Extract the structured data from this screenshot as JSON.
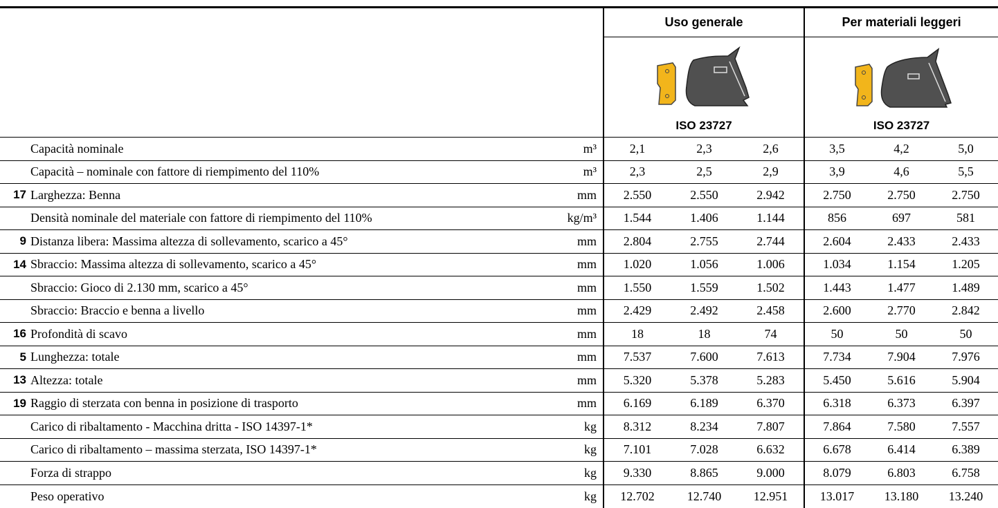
{
  "table": {
    "groups": [
      {
        "title": "Uso generale",
        "standard": "ISO 23727"
      },
      {
        "title": "Per materiali leggeri",
        "standard": "ISO 23727"
      }
    ],
    "rows": [
      {
        "label": "Capacità nominale",
        "unit": "m³",
        "values": [
          "2,1",
          "2,3",
          "2,6",
          "3,5",
          "4,2",
          "5,0"
        ]
      },
      {
        "label": "Capacità – nominale con fattore di riempimento del 110%",
        "unit": "m³",
        "values": [
          "2,3",
          "2,5",
          "2,9",
          "3,9",
          "4,6",
          "5,5"
        ]
      },
      {
        "num": "17",
        "label": "Larghezza: Benna",
        "unit": "mm",
        "values": [
          "2.550",
          "2.550",
          "2.942",
          "2.750",
          "2.750",
          "2.750"
        ]
      },
      {
        "label": "Densità nominale del materiale con fattore di riempimento del 110%",
        "unit": "kg/m³",
        "values": [
          "1.544",
          "1.406",
          "1.144",
          "856",
          "697",
          "581"
        ]
      },
      {
        "num": "9",
        "label": "Distanza libera: Massima altezza di sollevamento, scarico a 45°",
        "unit": "mm",
        "values": [
          "2.804",
          "2.755",
          "2.744",
          "2.604",
          "2.433",
          "2.433"
        ]
      },
      {
        "num": "14",
        "label": "Sbraccio: Massima altezza di sollevamento, scarico a 45°",
        "unit": "mm",
        "values": [
          "1.020",
          "1.056",
          "1.006",
          "1.034",
          "1.154",
          "1.205"
        ]
      },
      {
        "label": "Sbraccio: Gioco di 2.130 mm, scarico a 45°",
        "unit": "mm",
        "values": [
          "1.550",
          "1.559",
          "1.502",
          "1.443",
          "1.477",
          "1.489"
        ]
      },
      {
        "label": "Sbraccio: Braccio e benna a livello",
        "unit": "mm",
        "values": [
          "2.429",
          "2.492",
          "2.458",
          "2.600",
          "2.770",
          "2.842"
        ]
      },
      {
        "num": "16",
        "label": "Profondità di scavo",
        "unit": "mm",
        "values": [
          "18",
          "18",
          "74",
          "50",
          "50",
          "50"
        ]
      },
      {
        "num": "5",
        "label": "Lunghezza: totale",
        "unit": "mm",
        "values": [
          "7.537",
          "7.600",
          "7.613",
          "7.734",
          "7.904",
          "7.976"
        ]
      },
      {
        "num": "13",
        "label": "Altezza: totale",
        "unit": "mm",
        "values": [
          "5.320",
          "5.378",
          "5.283",
          "5.450",
          "5.616",
          "5.904"
        ]
      },
      {
        "num": "19",
        "label": "Raggio di sterzata con benna in posizione di trasporto",
        "unit": "mm",
        "values": [
          "6.169",
          "6.189",
          "6.370",
          "6.318",
          "6.373",
          "6.397"
        ]
      },
      {
        "label": "Carico di ribaltamento - Macchina dritta - ISO 14397-1*",
        "unit": "kg",
        "values": [
          "8.312",
          "8.234",
          "7.807",
          "7.864",
          "7.580",
          "7.557"
        ]
      },
      {
        "label": "Carico di ribaltamento – massima sterzata, ISO 14397-1*",
        "unit": "kg",
        "values": [
          "7.101",
          "7.028",
          "6.632",
          "6.678",
          "6.414",
          "6.389"
        ]
      },
      {
        "label": "Forza di strappo",
        "unit": "kg",
        "values": [
          "9.330",
          "8.865",
          "9.000",
          "8.079",
          "6.803",
          "6.758"
        ]
      },
      {
        "label": "Peso operativo",
        "unit": "kg",
        "values": [
          "12.702",
          "12.740",
          "12.951",
          "13.017",
          "13.180",
          "13.240"
        ]
      }
    ]
  }
}
